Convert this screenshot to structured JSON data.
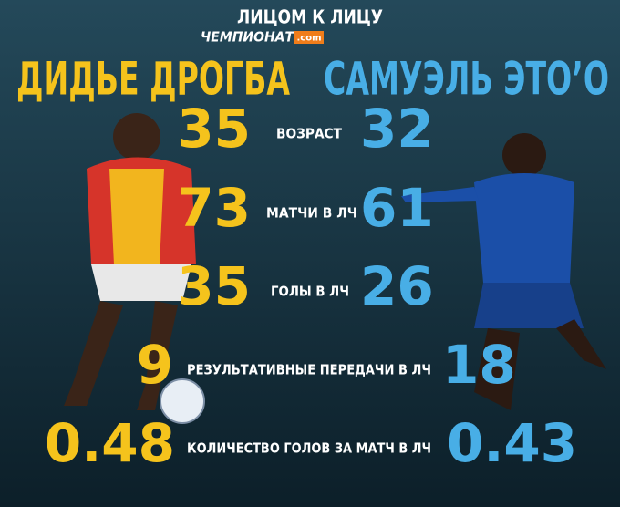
{
  "header": {
    "title": "ЛИЦОМ К ЛИЦУ",
    "brand": "ЧЕМПИОНАТ",
    "brand_suffix": ".com"
  },
  "players": {
    "left": "ДИДЬЕ ДРОГБА",
    "right": "САМУЭЛЬ ЭТО’О"
  },
  "rows": [
    {
      "label": "ВОЗРАСТ",
      "left": "35",
      "right": "32"
    },
    {
      "label": "МАТЧИ В ЛЧ",
      "left": "73",
      "right": "61"
    },
    {
      "label": "ГОЛЫ В ЛЧ",
      "left": "35",
      "right": "26"
    },
    {
      "label": "РЕЗУЛЬТАТИВНЫЕ ПЕРЕДАЧИ В ЛЧ",
      "left": "9",
      "right": "18"
    },
    {
      "label": "КОЛИЧЕСТВО ГОЛОВ ЗА МАТЧ В ЛЧ",
      "left": "0.48",
      "right": "0.43"
    }
  ]
}
